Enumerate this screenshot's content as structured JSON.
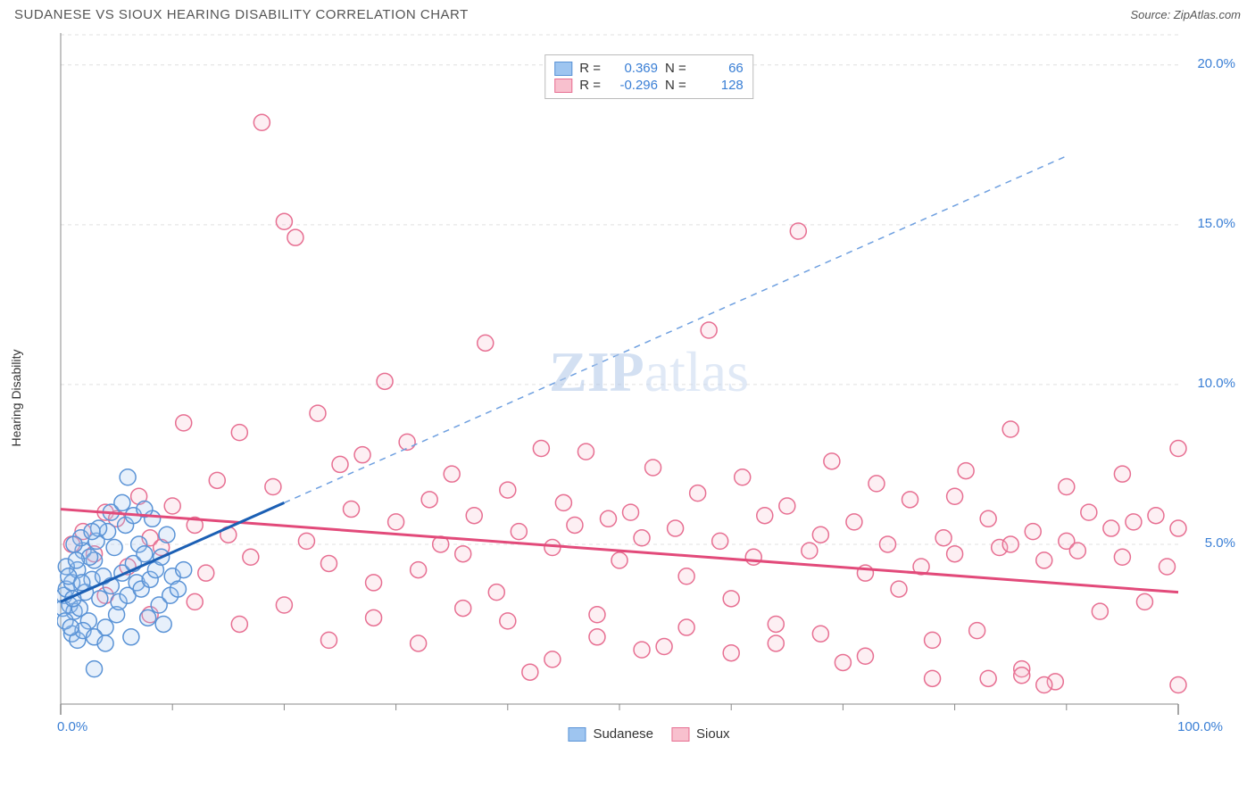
{
  "header": {
    "title": "SUDANESE VS SIOUX HEARING DISABILITY CORRELATION CHART",
    "source": "Source: ZipAtlas.com"
  },
  "watermark": {
    "bold": "ZIP",
    "rest": "atlas"
  },
  "chart": {
    "type": "scatter",
    "background_color": "#ffffff",
    "grid_color": "#e0e0e0",
    "axis_color": "#888888",
    "xlim": [
      0,
      100
    ],
    "ylim": [
      0,
      21
    ],
    "ylabel": "Hearing Disability",
    "x_ticks_major": [
      0,
      100
    ],
    "x_tick_labels": [
      "0.0%",
      "100.0%"
    ],
    "x_ticks_minor": [
      10,
      20,
      30,
      40,
      50,
      60,
      70,
      80,
      90
    ],
    "y_ticks": [
      5,
      10,
      15,
      20
    ],
    "y_tick_labels": [
      "5.0%",
      "10.0%",
      "15.0%",
      "20.0%"
    ],
    "marker_radius": 9,
    "marker_stroke_width": 1.5,
    "marker_fill_opacity": 0.25,
    "series": [
      {
        "name": "Sudanese",
        "color_fill": "#9ec5f0",
        "color_stroke": "#5a93d6",
        "trend_color": "#1b5fb4",
        "trend_dash_color": "#6fa0e0",
        "trend_solid_xrange": [
          0,
          20
        ],
        "trend_dash_xrange": [
          20,
          90
        ],
        "trend_y_at_x0": 3.2,
        "trend_slope": 0.155,
        "points": [
          [
            0.3,
            3.4
          ],
          [
            0.5,
            3.6
          ],
          [
            0.8,
            3.1
          ],
          [
            1.0,
            3.8
          ],
          [
            1.2,
            2.9
          ],
          [
            1.5,
            4.2
          ],
          [
            1.7,
            3.0
          ],
          [
            2.0,
            4.8
          ],
          [
            2.2,
            3.5
          ],
          [
            2.5,
            2.6
          ],
          [
            2.8,
            3.9
          ],
          [
            3.0,
            4.5
          ],
          [
            3.2,
            5.1
          ],
          [
            3.5,
            3.3
          ],
          [
            3.8,
            4.0
          ],
          [
            4.0,
            2.4
          ],
          [
            4.2,
            5.4
          ],
          [
            4.5,
            3.7
          ],
          [
            4.8,
            4.9
          ],
          [
            5.0,
            2.8
          ],
          [
            5.2,
            3.2
          ],
          [
            5.5,
            4.1
          ],
          [
            5.8,
            5.6
          ],
          [
            6.0,
            3.4
          ],
          [
            6.3,
            2.1
          ],
          [
            6.5,
            4.4
          ],
          [
            6.8,
            3.8
          ],
          [
            7.0,
            5.0
          ],
          [
            7.2,
            3.6
          ],
          [
            7.5,
            4.7
          ],
          [
            7.8,
            2.7
          ],
          [
            8.0,
            3.9
          ],
          [
            8.2,
            5.8
          ],
          [
            8.5,
            4.2
          ],
          [
            8.8,
            3.1
          ],
          [
            9.0,
            4.6
          ],
          [
            9.2,
            2.5
          ],
          [
            9.5,
            5.3
          ],
          [
            9.8,
            3.4
          ],
          [
            10.0,
            4.0
          ],
          [
            6.0,
            7.1
          ],
          [
            1.0,
            2.2
          ],
          [
            1.5,
            2.0
          ],
          [
            2.0,
            2.3
          ],
          [
            3.0,
            2.1
          ],
          [
            4.0,
            1.9
          ],
          [
            0.5,
            4.3
          ],
          [
            1.8,
            5.2
          ],
          [
            2.6,
            4.6
          ],
          [
            3.4,
            5.5
          ],
          [
            0.2,
            3.0
          ],
          [
            0.7,
            4.0
          ],
          [
            1.1,
            3.3
          ],
          [
            1.4,
            4.5
          ],
          [
            1.9,
            3.8
          ],
          [
            10.5,
            3.6
          ],
          [
            11.0,
            4.2
          ],
          [
            3.0,
            1.1
          ],
          [
            4.5,
            6.0
          ],
          [
            5.5,
            6.3
          ],
          [
            6.5,
            5.9
          ],
          [
            7.5,
            6.1
          ],
          [
            1.2,
            5.0
          ],
          [
            2.8,
            5.4
          ],
          [
            0.4,
            2.6
          ],
          [
            0.9,
            2.4
          ]
        ]
      },
      {
        "name": "Sioux",
        "color_fill": "#f8c0ce",
        "color_stroke": "#e76f92",
        "trend_color": "#e24a7a",
        "trend_solid_xrange": [
          0,
          100
        ],
        "trend_y_at_x0": 6.1,
        "trend_slope": -0.026,
        "points": [
          [
            1,
            5.0
          ],
          [
            2,
            5.4
          ],
          [
            3,
            4.7
          ],
          [
            4,
            6.0
          ],
          [
            5,
            5.8
          ],
          [
            6,
            4.3
          ],
          [
            7,
            6.5
          ],
          [
            8,
            5.2
          ],
          [
            9,
            4.9
          ],
          [
            10,
            6.2
          ],
          [
            11,
            8.8
          ],
          [
            12,
            5.6
          ],
          [
            13,
            4.1
          ],
          [
            14,
            7.0
          ],
          [
            15,
            5.3
          ],
          [
            16,
            8.5
          ],
          [
            17,
            4.6
          ],
          [
            18,
            18.2
          ],
          [
            19,
            6.8
          ],
          [
            20,
            15.1
          ],
          [
            21,
            14.6
          ],
          [
            22,
            5.1
          ],
          [
            23,
            9.1
          ],
          [
            24,
            4.4
          ],
          [
            25,
            7.5
          ],
          [
            26,
            6.1
          ],
          [
            27,
            7.8
          ],
          [
            28,
            3.8
          ],
          [
            29,
            10.1
          ],
          [
            30,
            5.7
          ],
          [
            31,
            8.2
          ],
          [
            32,
            4.2
          ],
          [
            33,
            6.4
          ],
          [
            34,
            5.0
          ],
          [
            35,
            7.2
          ],
          [
            36,
            4.7
          ],
          [
            37,
            5.9
          ],
          [
            38,
            11.3
          ],
          [
            39,
            3.5
          ],
          [
            40,
            6.7
          ],
          [
            41,
            5.4
          ],
          [
            42,
            1.0
          ],
          [
            43,
            8.0
          ],
          [
            44,
            4.9
          ],
          [
            45,
            6.3
          ],
          [
            46,
            5.6
          ],
          [
            47,
            7.9
          ],
          [
            48,
            2.1
          ],
          [
            49,
            5.8
          ],
          [
            50,
            4.5
          ],
          [
            51,
            6.0
          ],
          [
            52,
            5.2
          ],
          [
            53,
            7.4
          ],
          [
            54,
            1.8
          ],
          [
            55,
            5.5
          ],
          [
            56,
            4.0
          ],
          [
            57,
            6.6
          ],
          [
            58,
            11.7
          ],
          [
            59,
            5.1
          ],
          [
            60,
            3.3
          ],
          [
            61,
            7.1
          ],
          [
            62,
            4.6
          ],
          [
            63,
            5.9
          ],
          [
            64,
            2.5
          ],
          [
            65,
            6.2
          ],
          [
            66,
            14.8
          ],
          [
            67,
            4.8
          ],
          [
            68,
            5.3
          ],
          [
            69,
            7.6
          ],
          [
            70,
            1.3
          ],
          [
            71,
            5.7
          ],
          [
            72,
            4.1
          ],
          [
            73,
            6.9
          ],
          [
            74,
            5.0
          ],
          [
            75,
            3.6
          ],
          [
            76,
            6.4
          ],
          [
            77,
            4.3
          ],
          [
            78,
            0.8
          ],
          [
            79,
            5.2
          ],
          [
            80,
            4.7
          ],
          [
            81,
            7.3
          ],
          [
            82,
            2.3
          ],
          [
            83,
            5.8
          ],
          [
            84,
            4.9
          ],
          [
            85,
            8.6
          ],
          [
            86,
            1.1
          ],
          [
            87,
            5.4
          ],
          [
            88,
            4.5
          ],
          [
            89,
            0.7
          ],
          [
            90,
            5.1
          ],
          [
            91,
            4.8
          ],
          [
            92,
            6.0
          ],
          [
            93,
            2.9
          ],
          [
            94,
            5.5
          ],
          [
            95,
            4.6
          ],
          [
            96,
            5.7
          ],
          [
            97,
            3.2
          ],
          [
            98,
            5.9
          ],
          [
            99,
            4.3
          ],
          [
            100,
            8.0
          ],
          [
            100,
            5.5
          ],
          [
            100,
            0.6
          ],
          [
            88,
            0.6
          ],
          [
            86,
            0.9
          ],
          [
            83,
            0.8
          ],
          [
            78,
            2.0
          ],
          [
            72,
            1.5
          ],
          [
            68,
            2.2
          ],
          [
            64,
            1.9
          ],
          [
            60,
            1.6
          ],
          [
            56,
            2.4
          ],
          [
            52,
            1.7
          ],
          [
            48,
            2.8
          ],
          [
            44,
            1.4
          ],
          [
            40,
            2.6
          ],
          [
            36,
            3.0
          ],
          [
            32,
            1.9
          ],
          [
            28,
            2.7
          ],
          [
            24,
            2.0
          ],
          [
            20,
            3.1
          ],
          [
            16,
            2.5
          ],
          [
            12,
            3.2
          ],
          [
            8,
            2.8
          ],
          [
            4,
            3.4
          ],
          [
            95,
            7.2
          ],
          [
            90,
            6.8
          ],
          [
            85,
            5.0
          ],
          [
            80,
            6.5
          ]
        ]
      }
    ],
    "legend_top": {
      "rows": [
        {
          "swatch_fill": "#9ec5f0",
          "swatch_stroke": "#5a93d6",
          "r_label": "R =",
          "r_value": "0.369",
          "n_label": "N =",
          "n_value": "66"
        },
        {
          "swatch_fill": "#f8c0ce",
          "swatch_stroke": "#e76f92",
          "r_label": "R =",
          "r_value": "-0.296",
          "n_label": "N =",
          "n_value": "128"
        }
      ]
    },
    "legend_bottom": [
      {
        "swatch_fill": "#9ec5f0",
        "swatch_stroke": "#5a93d6",
        "label": "Sudanese"
      },
      {
        "swatch_fill": "#f8c0ce",
        "swatch_stroke": "#e76f92",
        "label": "Sioux"
      }
    ]
  }
}
